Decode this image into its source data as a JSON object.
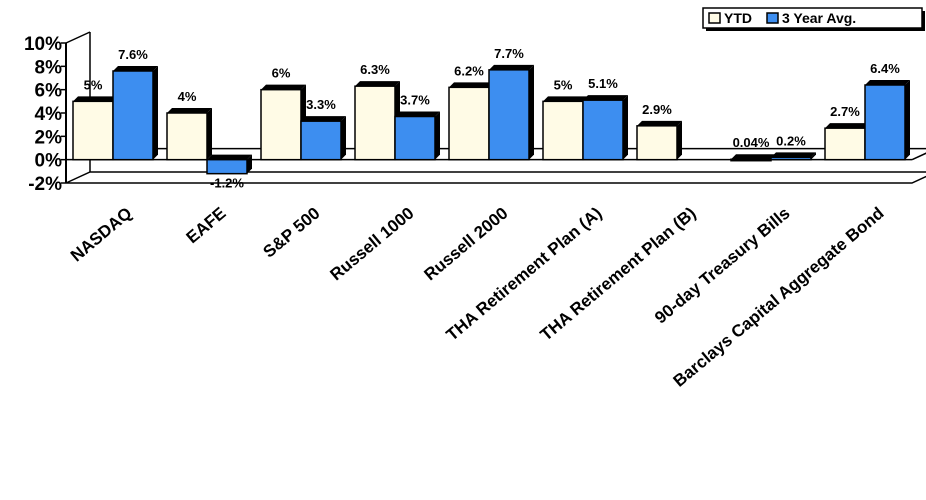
{
  "chart_data": {
    "type": "bar",
    "categories": [
      "NASDAQ",
      "EAFE",
      "S&P 500",
      "Russell 1000",
      "Russell 2000",
      "THA Retirement Plan (A)",
      "THA Retirement Plan (B)",
      "90-day Treasury Bills",
      "Barclays Capital Aggregate Bond"
    ],
    "series": [
      {
        "name": "YTD",
        "values": [
          5,
          4,
          6,
          6.3,
          6.2,
          5,
          2.9,
          0.04,
          2.7
        ],
        "labels": [
          "5%",
          "4%",
          "6%",
          "6.3%",
          "6.2%",
          "5%",
          "2.9%",
          "0.04%",
          "2.7%"
        ]
      },
      {
        "name": "3 Year Avg.",
        "values": [
          7.6,
          -1.2,
          3.3,
          3.7,
          7.7,
          5.1,
          null,
          0.2,
          6.4
        ],
        "labels": [
          "7.6%",
          "-1.2%",
          "3.3%",
          "3.7%",
          "7.7%",
          "5.1%",
          null,
          "0.2%",
          "6.4%"
        ]
      }
    ],
    "yticks": [
      "10%",
      "8%",
      "6%",
      "4%",
      "2%",
      "0%",
      "-2%"
    ],
    "ylim": [
      -2,
      10
    ],
    "legend_position": "top-right",
    "colors": {
      "ytd": "#FFFBE6",
      "avg3": "#3D8EF0",
      "outline": "#000000"
    }
  }
}
